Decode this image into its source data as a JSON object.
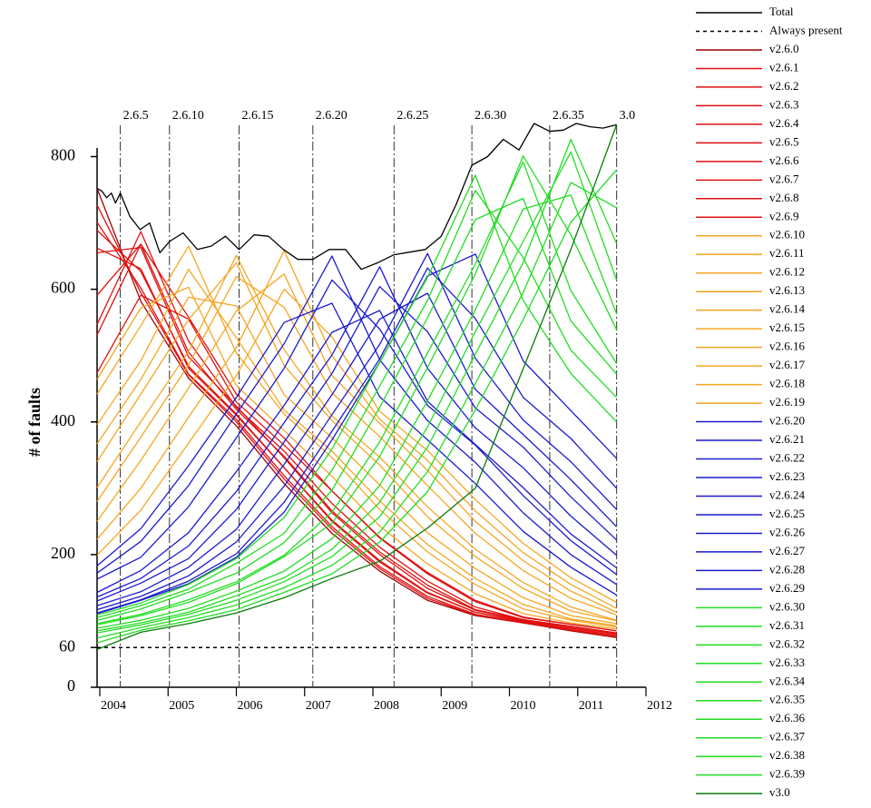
{
  "chart_data": {
    "type": "line",
    "y_label": "# of faults",
    "xlim": [
      2003.96,
      2012
    ],
    "xticks": [
      2004,
      2005,
      2006,
      2007,
      2008,
      2009,
      2010,
      2011,
      2012
    ],
    "ylim": [
      0,
      813
    ],
    "yticks": [
      0,
      60,
      200,
      400,
      600,
      800
    ],
    "legend": "right",
    "releases": [
      {
        "label": "2.6.5",
        "x": 2004.3
      },
      {
        "label": "2.6.10",
        "x": 2005.02
      },
      {
        "label": "2.6.15",
        "x": 2006.04
      },
      {
        "label": "2.6.20",
        "x": 2007.12
      },
      {
        "label": "2.6.25",
        "x": 2008.31
      },
      {
        "label": "2.6.30",
        "x": 2009.45
      },
      {
        "label": "2.6.35",
        "x": 2010.59
      },
      {
        "label": "3.0",
        "x": 2011.57
      }
    ],
    "x": [
      2003.96,
      2004.6,
      2005.3,
      2006.0,
      2006.7,
      2007.4,
      2008.1,
      2008.8,
      2009.5,
      2010.2,
      2010.9,
      2011.57
    ],
    "series": [
      {
        "name": "Total",
        "color": "#000000",
        "x": [
          2003.96,
          2004.03,
          2004.1,
          2004.17,
          2004.23,
          2004.3,
          2004.44,
          2004.59,
          2004.73,
          2004.88,
          2005.02,
          2005.22,
          2005.43,
          2005.63,
          2005.84,
          2006.04,
          2006.26,
          2006.47,
          2006.69,
          2006.9,
          2007.12,
          2007.36,
          2007.6,
          2007.83,
          2008.07,
          2008.31,
          2008.54,
          2008.77,
          2009.0,
          2009.22,
          2009.45,
          2009.68,
          2009.91,
          2010.14,
          2010.36,
          2010.59,
          2010.79,
          2010.98,
          2011.18,
          2011.37,
          2011.57
        ],
        "values": [
          752,
          748,
          738,
          745,
          730,
          745,
          710,
          690,
          700,
          655,
          672,
          685,
          660,
          665,
          680,
          660,
          682,
          680,
          660,
          645,
          645,
          660,
          660,
          630,
          640,
          652,
          656,
          660,
          680,
          728,
          787,
          800,
          826,
          810,
          850,
          838,
          840,
          850,
          845,
          843,
          848
        ]
      },
      {
        "name": "Always present",
        "color": "#000000",
        "dash": "dashed",
        "x": [
          2003.96,
          2011.57
        ],
        "values": [
          60,
          60
        ]
      },
      {
        "name": "v2.6.0",
        "color": "#a00000",
        "values": [
          752,
          582,
          466,
          394,
          307,
          232,
          175,
          131,
          108,
          97,
          85,
          75
        ]
      },
      {
        "name": "v2.6.1",
        "color": "#e01010",
        "values": [
          727,
          595,
          471,
          400,
          314,
          238,
          179,
          134,
          109,
          97,
          86,
          76
        ]
      },
      {
        "name": "v2.6.2",
        "color": "#e01010",
        "values": [
          701,
          602,
          472,
          404,
          319,
          242,
          182,
          137,
          110,
          98,
          87,
          76
        ]
      },
      {
        "name": "v2.6.3",
        "color": "#e01010",
        "values": [
          689,
          627,
          484,
          412,
          331,
          250,
          189,
          142,
          113,
          99,
          89,
          78
        ]
      },
      {
        "name": "v2.6.4",
        "color": "#e01010",
        "values": [
          662,
          631,
          481,
          410,
          331,
          252,
          191,
          143,
          113,
          100,
          89,
          78
        ]
      },
      {
        "name": "v2.6.5",
        "color": "#e01010",
        "values": [
          655,
          663,
          498,
          424,
          346,
          263,
          200,
          149,
          116,
          101,
          91,
          80
        ]
      },
      {
        "name": "v2.6.6",
        "color": "#e01010",
        "values": [
          591,
          668,
          505,
          419,
          348,
          266,
          204,
          154,
          117,
          102,
          91,
          81
        ]
      },
      {
        "name": "v2.6.7",
        "color": "#e01010",
        "values": [
          547,
          687,
          522,
          422,
          356,
          277,
          211,
          160,
          121,
          102,
          92,
          82
        ]
      },
      {
        "name": "v2.6.8",
        "color": "#e01010",
        "values": [
          531,
          668,
          558,
          442,
          376,
          296,
          225,
          171,
          129,
          105,
          95,
          85
        ]
      },
      {
        "name": "v2.6.9",
        "color": "#e01010",
        "values": [
          474,
          591,
          555,
          430,
          365,
          296,
          226,
          173,
          131,
          106,
          95,
          85
        ]
      },
      {
        "name": "v2.6.10",
        "color": "#f5a623",
        "values": [
          464,
          572,
          603,
          455,
          387,
          318,
          243,
          186,
          141,
          111,
          97,
          88
        ]
      },
      {
        "name": "v2.6.11",
        "color": "#f5a623",
        "values": [
          442,
          545,
          665,
          504,
          412,
          346,
          268,
          204,
          155,
          118,
          101,
          91
        ]
      },
      {
        "name": "v2.6.12",
        "color": "#f5a623",
        "values": [
          396,
          492,
          630,
          527,
          418,
          356,
          281,
          215,
          164,
          125,
          103,
          93
        ]
      },
      {
        "name": "v2.6.13",
        "color": "#f5a623",
        "values": [
          367,
          464,
          588,
          575,
          441,
          376,
          305,
          233,
          179,
          135,
          108,
          96
        ]
      },
      {
        "name": "v2.6.14",
        "color": "#f5a623",
        "values": [
          340,
          442,
          554,
          640,
          485,
          402,
          335,
          257,
          197,
          149,
          115,
          100
        ]
      },
      {
        "name": "v2.6.15",
        "color": "#f5a623",
        "values": [
          301,
          400,
          506,
          651,
          509,
          409,
          347,
          272,
          208,
          158,
          121,
          101
        ]
      },
      {
        "name": "v2.6.16",
        "color": "#f5a623",
        "values": [
          280,
          377,
          486,
          619,
          573,
          444,
          378,
          304,
          232,
          176,
          134,
          109
        ]
      },
      {
        "name": "v2.6.17",
        "color": "#f5a623",
        "values": [
          250,
          342,
          451,
          567,
          623,
          470,
          398,
          327,
          250,
          191,
          145,
          113
        ]
      },
      {
        "name": "v2.6.18",
        "color": "#f5a623",
        "values": [
          223,
          300,
          407,
          512,
          658,
          500,
          404,
          342,
          266,
          203,
          155,
          119
        ]
      },
      {
        "name": "v2.6.19",
        "color": "#f5a623",
        "values": [
          199,
          267,
          368,
          470,
          600,
          528,
          416,
          357,
          283,
          217,
          165,
          128
        ]
      },
      {
        "name": "v2.6.20",
        "color": "#1a1ad0",
        "values": [
          183,
          239,
          334,
          437,
          550,
          579,
          438,
          373,
          307,
          235,
          181,
          139
        ]
      },
      {
        "name": "v2.6.21",
        "color": "#1a1ad0",
        "values": [
          172,
          220,
          304,
          412,
          518,
          650,
          494,
          402,
          339,
          263,
          200,
          155
        ]
      },
      {
        "name": "v2.6.22",
        "color": "#1a1ad0",
        "values": [
          163,
          196,
          272,
          376,
          481,
          614,
          540,
          425,
          365,
          289,
          221,
          170
        ]
      },
      {
        "name": "v2.6.23",
        "color": "#1a1ad0",
        "values": [
          143,
          176,
          233,
          325,
          425,
          535,
          568,
          431,
          366,
          301,
          231,
          180
        ]
      },
      {
        "name": "v2.6.24",
        "color": "#1a1ad0",
        "values": [
          136,
          164,
          213,
          295,
          399,
          501,
          634,
          481,
          391,
          331,
          258,
          199
        ]
      },
      {
        "name": "v2.6.25",
        "color": "#1a1ad0",
        "values": [
          130,
          157,
          194,
          268,
          370,
          473,
          604,
          536,
          421,
          362,
          287,
          222
        ]
      },
      {
        "name": "v2.6.26",
        "color": "#1a1ad0",
        "values": [
          123,
          144,
          181,
          238,
          336,
          441,
          555,
          594,
          449,
          381,
          313,
          242
        ]
      },
      {
        "name": "v2.6.27",
        "color": "#1a1ad0",
        "values": [
          117,
          137,
          168,
          219,
          303,
          411,
          517,
          654,
          496,
          403,
          340,
          268
        ]
      },
      {
        "name": "v2.6.28",
        "color": "#1a1ad0",
        "values": [
          112,
          132,
          160,
          201,
          279,
          386,
          495,
          632,
          556,
          437,
          375,
          300
        ]
      },
      {
        "name": "v2.6.29",
        "color": "#1a1ad0",
        "values": [
          111,
          131,
          156,
          196,
          264,
          373,
          490,
          620,
          653,
          492,
          417,
          345
        ]
      },
      {
        "name": "v2.6.30",
        "color": "#22dd22",
        "values": [
          109,
          127,
          155,
          194,
          256,
          359,
          490,
          618,
          772,
          583,
          473,
          400
        ]
      },
      {
        "name": "v2.6.31",
        "color": "#22dd22",
        "values": [
          105,
          123,
          148,
          187,
          232,
          327,
          454,
          583,
          749,
          648,
          508,
          437
        ]
      },
      {
        "name": "v2.6.32",
        "color": "#22dd22",
        "values": [
          101,
          118,
          143,
          172,
          218,
          297,
          422,
          557,
          705,
          737,
          552,
          472
        ]
      },
      {
        "name": "v2.6.33",
        "color": "#22dd22",
        "values": [
          96,
          110,
          132,
          159,
          199,
          264,
          370,
          504,
          638,
          792,
          598,
          488
        ]
      },
      {
        "name": "v2.6.34",
        "color": "#22dd22",
        "values": [
          94,
          108,
          128,
          156,
          197,
          247,
          348,
          482,
          623,
          801,
          682,
          539
        ]
      },
      {
        "name": "v2.6.35",
        "color": "#22dd22",
        "values": [
          89,
          101,
          119,
          145,
          175,
          224,
          304,
          432,
          569,
          721,
          742,
          563
        ]
      },
      {
        "name": "v2.6.36",
        "color": "#22dd22",
        "values": [
          85,
          97,
          113,
          138,
          165,
          208,
          279,
          392,
          536,
          672,
          807,
          614
        ]
      },
      {
        "name": "v2.6.37",
        "color": "#22dd22",
        "values": [
          82,
          94,
          110,
          131,
          159,
          197,
          257,
          362,
          502,
          640,
          826,
          669
        ]
      },
      {
        "name": "v2.6.38",
        "color": "#22dd22",
        "values": [
          74,
          90,
          105,
          124,
          150,
          184,
          234,
          325,
          458,
          595,
          761,
          723
        ]
      },
      {
        "name": "v2.6.39",
        "color": "#22dd22",
        "values": [
          67,
          86,
          100,
          117,
          143,
          171,
          219,
          295,
          418,
          554,
          701,
          780
        ]
      },
      {
        "name": "v3.0",
        "color": "#0a7a0a",
        "values": [
          57,
          83,
          96,
          112,
          135,
          164,
          190,
          240,
          300,
          480,
          660,
          848
        ]
      }
    ]
  }
}
